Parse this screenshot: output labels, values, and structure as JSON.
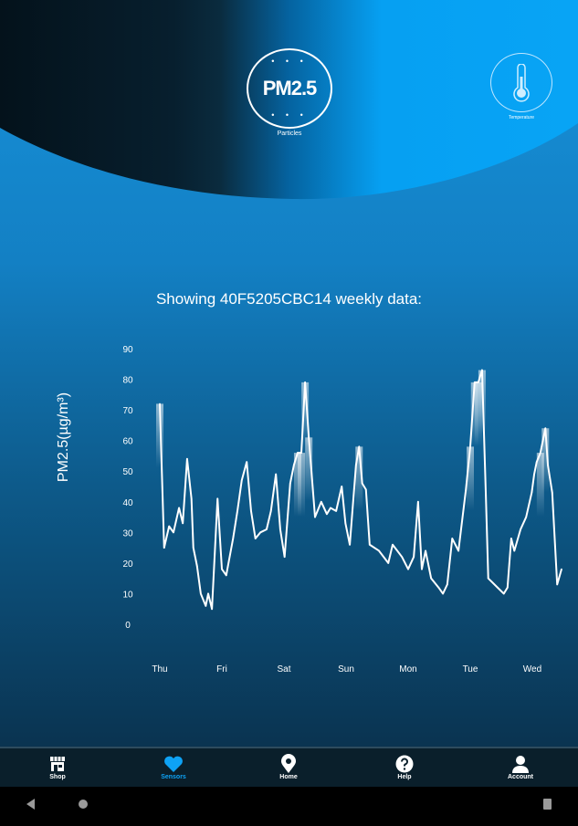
{
  "header": {
    "pm_badge": "PM2.5",
    "pm_caption": "Particles",
    "temp_caption": "Temperature"
  },
  "title": "Showing 40F5205CBC14 weekly data:",
  "chart_data": {
    "type": "line",
    "title": "Showing 40F5205CBC14 weekly data:",
    "ylabel": "PM2.5(µg/m³)",
    "xlabel": "",
    "ylim": [
      0,
      90
    ],
    "yticks": [
      "0",
      "10",
      "20",
      "30",
      "40",
      "50",
      "60",
      "70",
      "80",
      "90"
    ],
    "xticks": [
      "Thu",
      "Fri",
      "Sat",
      "Sun",
      "Mon",
      "Tue",
      "Wed"
    ],
    "x_unit": "days since Thu",
    "points": [
      [
        0,
        72
      ],
      [
        0.07,
        25
      ],
      [
        0.15,
        32
      ],
      [
        0.22,
        30
      ],
      [
        0.31,
        38
      ],
      [
        0.37,
        33
      ],
      [
        0.44,
        54
      ],
      [
        0.51,
        41
      ],
      [
        0.54,
        25
      ],
      [
        0.6,
        19
      ],
      [
        0.66,
        10
      ],
      [
        0.74,
        6
      ],
      [
        0.78,
        10
      ],
      [
        0.84,
        5
      ],
      [
        0.93,
        41
      ],
      [
        1.0,
        18
      ],
      [
        1.07,
        16
      ],
      [
        1.18,
        28
      ],
      [
        1.25,
        37
      ],
      [
        1.32,
        47
      ],
      [
        1.4,
        53
      ],
      [
        1.47,
        37
      ],
      [
        1.54,
        28
      ],
      [
        1.62,
        30
      ],
      [
        1.72,
        31
      ],
      [
        1.79,
        37
      ],
      [
        1.87,
        49
      ],
      [
        1.94,
        31
      ],
      [
        2.01,
        22
      ],
      [
        2.1,
        46
      ],
      [
        2.16,
        52
      ],
      [
        2.22,
        56
      ],
      [
        2.28,
        56
      ],
      [
        2.34,
        79
      ],
      [
        2.4,
        61
      ],
      [
        2.5,
        35
      ],
      [
        2.6,
        40
      ],
      [
        2.69,
        36
      ],
      [
        2.75,
        38
      ],
      [
        2.84,
        37
      ],
      [
        2.93,
        45
      ],
      [
        2.99,
        33
      ],
      [
        3.06,
        26
      ],
      [
        3.16,
        52
      ],
      [
        3.21,
        58
      ],
      [
        3.26,
        46
      ],
      [
        3.32,
        44
      ],
      [
        3.38,
        26
      ],
      [
        3.53,
        24
      ],
      [
        3.68,
        20
      ],
      [
        3.75,
        26
      ],
      [
        3.9,
        22
      ],
      [
        4.0,
        18
      ],
      [
        4.09,
        22
      ],
      [
        4.16,
        40
      ],
      [
        4.22,
        18
      ],
      [
        4.28,
        24
      ],
      [
        4.37,
        15
      ],
      [
        4.49,
        12
      ],
      [
        4.56,
        10
      ],
      [
        4.63,
        13
      ],
      [
        4.71,
        28
      ],
      [
        4.81,
        24
      ],
      [
        4.93,
        44
      ],
      [
        5.0,
        58
      ],
      [
        5.07,
        79
      ],
      [
        5.13,
        79
      ],
      [
        5.19,
        83
      ],
      [
        5.25,
        43
      ],
      [
        5.29,
        15
      ],
      [
        5.44,
        12
      ],
      [
        5.54,
        10
      ],
      [
        5.6,
        12
      ],
      [
        5.66,
        28
      ],
      [
        5.71,
        24
      ],
      [
        5.81,
        31
      ],
      [
        5.9,
        35
      ],
      [
        5.99,
        43
      ],
      [
        6.03,
        49
      ],
      [
        6.07,
        53
      ],
      [
        6.13,
        56
      ],
      [
        6.21,
        64
      ],
      [
        6.25,
        52
      ],
      [
        6.32,
        43
      ],
      [
        6.4,
        13
      ],
      [
        6.47,
        18
      ]
    ],
    "grid": false,
    "legend": "none"
  },
  "nav": [
    {
      "label": "Shop",
      "icon": "shop-icon"
    },
    {
      "label": "Sensors",
      "icon": "heart-icon",
      "active": true
    },
    {
      "label": "Home",
      "icon": "map-pin-icon"
    },
    {
      "label": "Help",
      "icon": "help-icon"
    },
    {
      "label": "Account",
      "icon": "account-icon"
    }
  ],
  "colors": {
    "active": "#0ea2f5",
    "line": "#ffffff"
  }
}
